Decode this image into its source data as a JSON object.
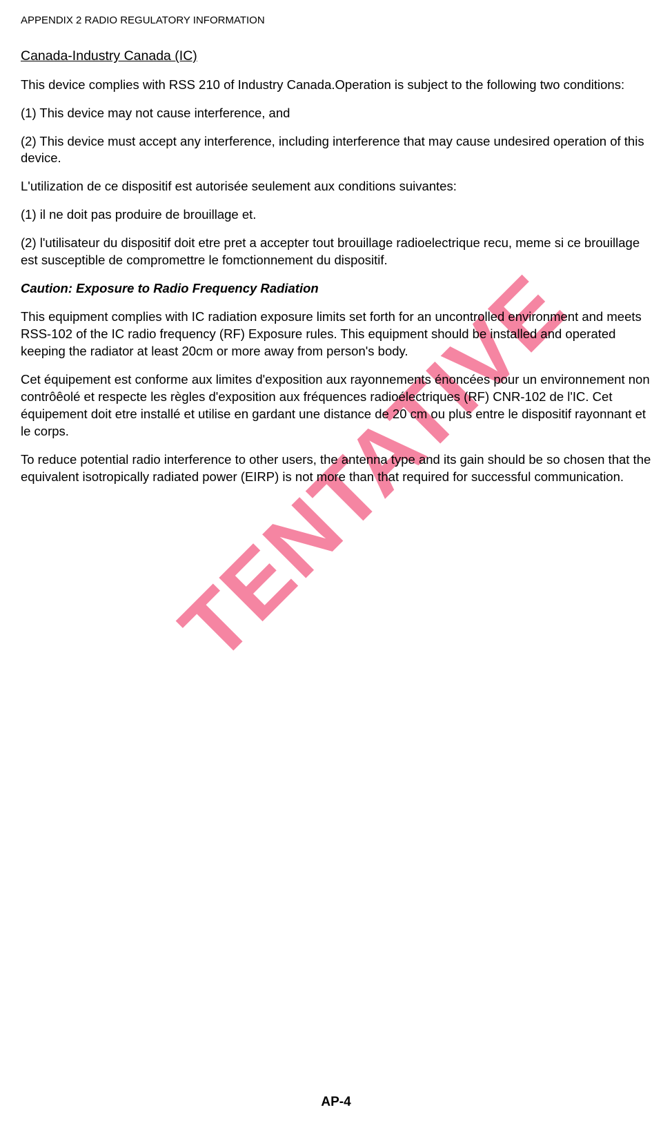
{
  "header": "APPENDIX 2 RADIO REGULATORY INFORMATION",
  "sectionTitle": "Canada-Industry Canada (IC)",
  "para1": "This device complies with RSS 210 of Industry Canada.Operation is subject to the following two conditions:",
  "para2": "(1) This device may not cause interference, and",
  "para3": "(2) This device must accept any interference, including interference that may cause undesired operation of this device.",
  "para4": "L'utilization de ce dispositif est autorisée seulement aux conditions suivantes:",
  "para5": "(1) il ne doit pas produire de brouillage et.",
  "para6": "(2) l'utilisateur du dispositif doit etre pret a accepter tout brouillage radioelectrique recu, meme si ce brouillage est susceptible de compromettre le fomctionnement du dispositif.",
  "cautionTitle": "Caution: Exposure to Radio Frequency Radiation",
  "para7": "This equipment complies with IC radiation exposure limits set forth for an uncontrolled environment and meets RSS-102 of the IC radio frequency (RF) Exposure rules. This equipment should be installed and operated keeping the radiator at least 20cm or more away from person's body.",
  "para8": "Cet équipement est conforme aux limites d'exposition aux rayonnements énoncées pour un environnement non contrôêolé et respecte les règles d'exposition aux fréquences radioélectriques (RF) CNR-102 de l'IC. Cet équipement doit etre installé et utilise en gardant une distance de 20 cm ou plus entre le dispositif rayonnant et le corps.",
  "para9": "To reduce potential radio interference to other users, the antenna type and its gain should be so chosen that the equivalent isotropically radiated power (EIRP) is not more than that required for successful communication.",
  "pageNumber": "AP-4",
  "watermark": "TENTATIVE",
  "styling": {
    "bodyFont": "Arial",
    "bodyColor": "#000000",
    "bodyBg": "#ffffff",
    "bodyFontSize": 18.5,
    "headerFontSize": 15,
    "sectionTitleFontSize": 19.5,
    "pageNumberFontSize": 19,
    "watermarkColor": "rgba(237,33,85,0.55)",
    "watermarkFontSize": 130,
    "watermarkRotation": -45
  }
}
